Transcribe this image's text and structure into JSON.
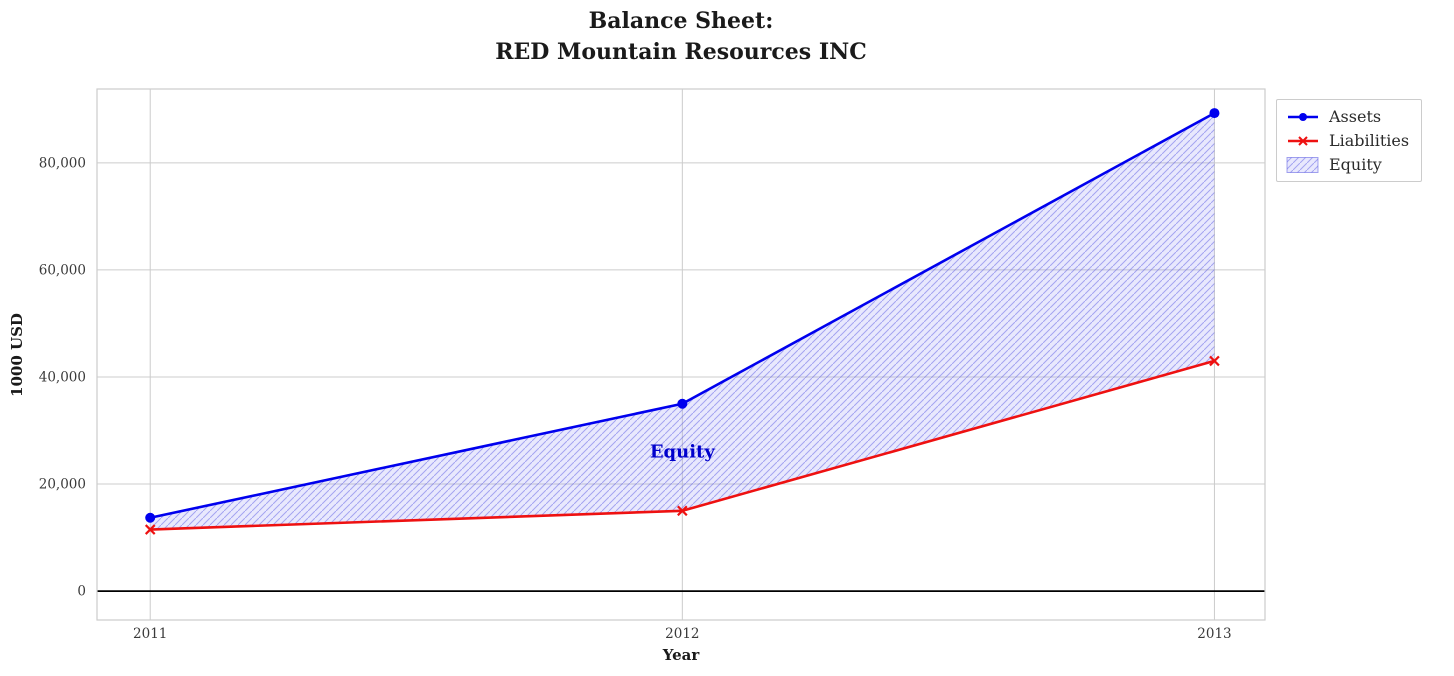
{
  "chart_data": {
    "type": "line",
    "title": "Balance Sheet:\nRED Mountain Resources INC",
    "xlabel": "Year",
    "ylabel": "1000 USD",
    "x": [
      2011,
      2012,
      2013
    ],
    "series": [
      {
        "name": "Assets",
        "values": [
          13700,
          35000,
          89300
        ],
        "color": "#0000ee",
        "marker": "circle"
      },
      {
        "name": "Liabilities",
        "values": [
          11500,
          15000,
          43000
        ],
        "color": "#ee1111",
        "marker": "x"
      }
    ],
    "area": {
      "name": "Equity",
      "between": [
        "Assets",
        "Liabilities"
      ],
      "facecolor": "rgba(130,130,245,0.18)",
      "hatchcolor": "rgba(80,80,225,0.45)",
      "edgecolor": "rgba(90,90,225,0.55)"
    },
    "annotation": {
      "text": "Equity",
      "x": 2012,
      "y": 25000,
      "color": "#0000cc"
    },
    "xticks": [
      2011,
      2012,
      2013
    ],
    "xtick_labels": [
      "2011",
      "2012",
      "2013"
    ],
    "yticks": [
      0,
      20000,
      40000,
      60000,
      80000
    ],
    "ytick_labels": [
      "0",
      "20,000",
      "40,000",
      "60,000",
      "80,000"
    ],
    "xlim": [
      2010.9,
      2013.095
    ],
    "ylim": [
      -5400,
      93800
    ],
    "grid": true,
    "grid_color": "#cccccc",
    "zero_line_color": "#000000",
    "tick_label_color": "#3a3a3a",
    "legend_position": "upper right"
  }
}
